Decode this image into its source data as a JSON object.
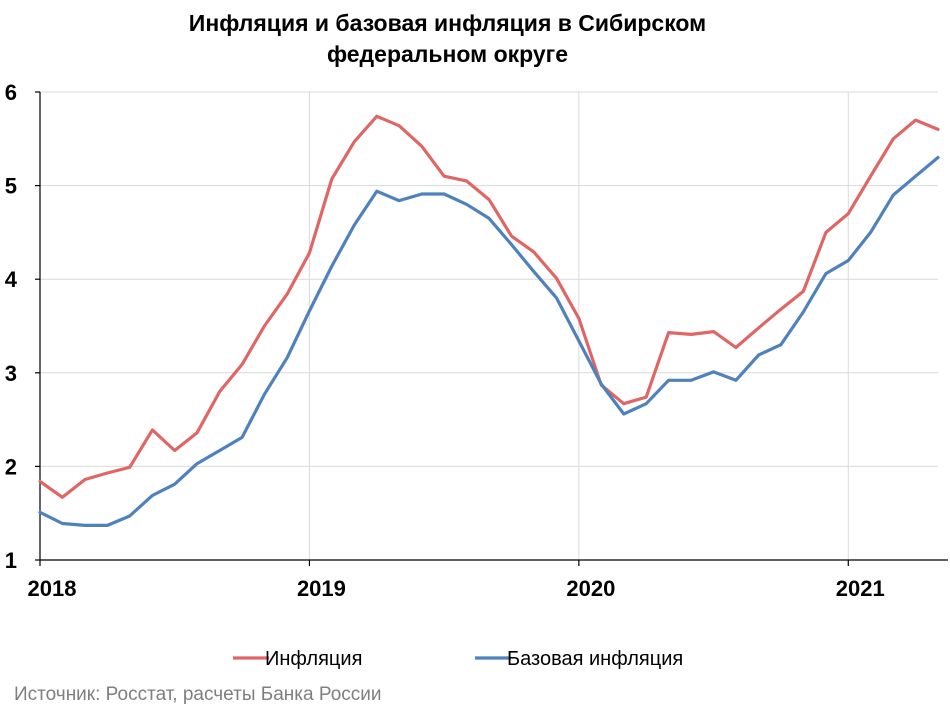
{
  "chart_data": {
    "type": "line",
    "title_lines": [
      "Инфляция и базовая инфляция в Сибирском",
      "федеральном округе"
    ],
    "xlabel": "",
    "ylabel": "",
    "xlim": [
      2018.0,
      2021.333
    ],
    "ylim": [
      1,
      6
    ],
    "y_ticks": [
      "1",
      "2",
      "3",
      "4",
      "5",
      "6"
    ],
    "x_ticks": [
      {
        "value": 2018,
        "label": "2018"
      },
      {
        "value": 2019,
        "label": "2019"
      },
      {
        "value": 2020,
        "label": "2020"
      },
      {
        "value": 2021,
        "label": "2021"
      }
    ],
    "grid": true,
    "legend": "bottom",
    "x": [
      2018.0,
      2018.083,
      2018.167,
      2018.25,
      2018.333,
      2018.417,
      2018.5,
      2018.583,
      2018.667,
      2018.75,
      2018.833,
      2018.917,
      2019.0,
      2019.083,
      2019.167,
      2019.25,
      2019.333,
      2019.417,
      2019.5,
      2019.583,
      2019.667,
      2019.75,
      2019.833,
      2019.917,
      2020.0,
      2020.083,
      2020.167,
      2020.25,
      2020.333,
      2020.417,
      2020.5,
      2020.583,
      2020.667,
      2020.75,
      2020.833,
      2020.917,
      2021.0,
      2021.083,
      2021.167,
      2021.25,
      2021.333
    ],
    "series": [
      {
        "name": "Инфляция",
        "color": "#e06666",
        "values": [
          1.84,
          1.67,
          1.86,
          1.93,
          1.99,
          2.39,
          2.17,
          2.36,
          2.8,
          3.09,
          3.5,
          3.84,
          4.28,
          5.07,
          5.47,
          5.74,
          5.64,
          5.42,
          5.1,
          5.05,
          4.85,
          4.46,
          4.29,
          4.01,
          3.58,
          2.87,
          2.67,
          2.74,
          3.43,
          3.41,
          3.44,
          3.27,
          3.48,
          3.68,
          3.87,
          4.5,
          4.7,
          5.1,
          5.5,
          5.7,
          5.6
        ]
      },
      {
        "name": "Базовая инфляция",
        "color": "#4f81bd",
        "values": [
          1.51,
          1.39,
          1.37,
          1.37,
          1.47,
          1.69,
          1.81,
          2.03,
          2.17,
          2.31,
          2.77,
          3.16,
          3.66,
          4.14,
          4.58,
          4.94,
          4.84,
          4.91,
          4.91,
          4.8,
          4.65,
          4.37,
          4.08,
          3.8,
          3.34,
          2.88,
          2.56,
          2.67,
          2.92,
          2.92,
          3.01,
          2.92,
          3.19,
          3.3,
          3.65,
          4.06,
          4.2,
          4.5,
          4.9,
          5.1,
          5.3
        ]
      }
    ]
  },
  "source": "Источник: Росстат, расчеты Банка России"
}
